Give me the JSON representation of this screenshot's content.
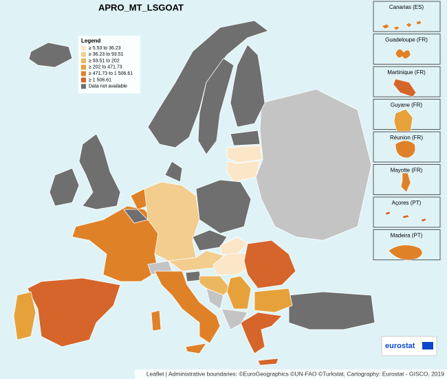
{
  "header": {
    "title": "APRO_MT_LSGOAT"
  },
  "legend": {
    "title": "Legend",
    "items": [
      {
        "label": "≥ 5.53 to 36.23",
        "color": "#fbe6c8"
      },
      {
        "label": "≥ 36.23 to 93.51",
        "color": "#f2cd8e"
      },
      {
        "label": "≥ 93.51 to 202",
        "color": "#ebb860"
      },
      {
        "label": "≥ 202 to 471.73",
        "color": "#e6a13a"
      },
      {
        "label": "≥ 471.73 to 1 506.61",
        "color": "#df8127"
      },
      {
        "label": "≥ 1 506.61",
        "color": "#d5652a"
      },
      {
        "label": "Data not available",
        "color": "#6f6f6f"
      }
    ]
  },
  "insets": [
    "Canarias (ES)",
    "Guadeloupe (FR)",
    "Martinique (FR)",
    "Guyane (FR)",
    "Réunion (FR)",
    "Mayotte (FR)",
    "Açores (PT)",
    "Madeira (PT)"
  ],
  "logo": "eurostat",
  "attribution": "Leaflet | Administrative boundaries: ©EuroGeographics ©UN-FAO ©Turkstat, Cartography: Eurostat - GISCO, 2019"
}
